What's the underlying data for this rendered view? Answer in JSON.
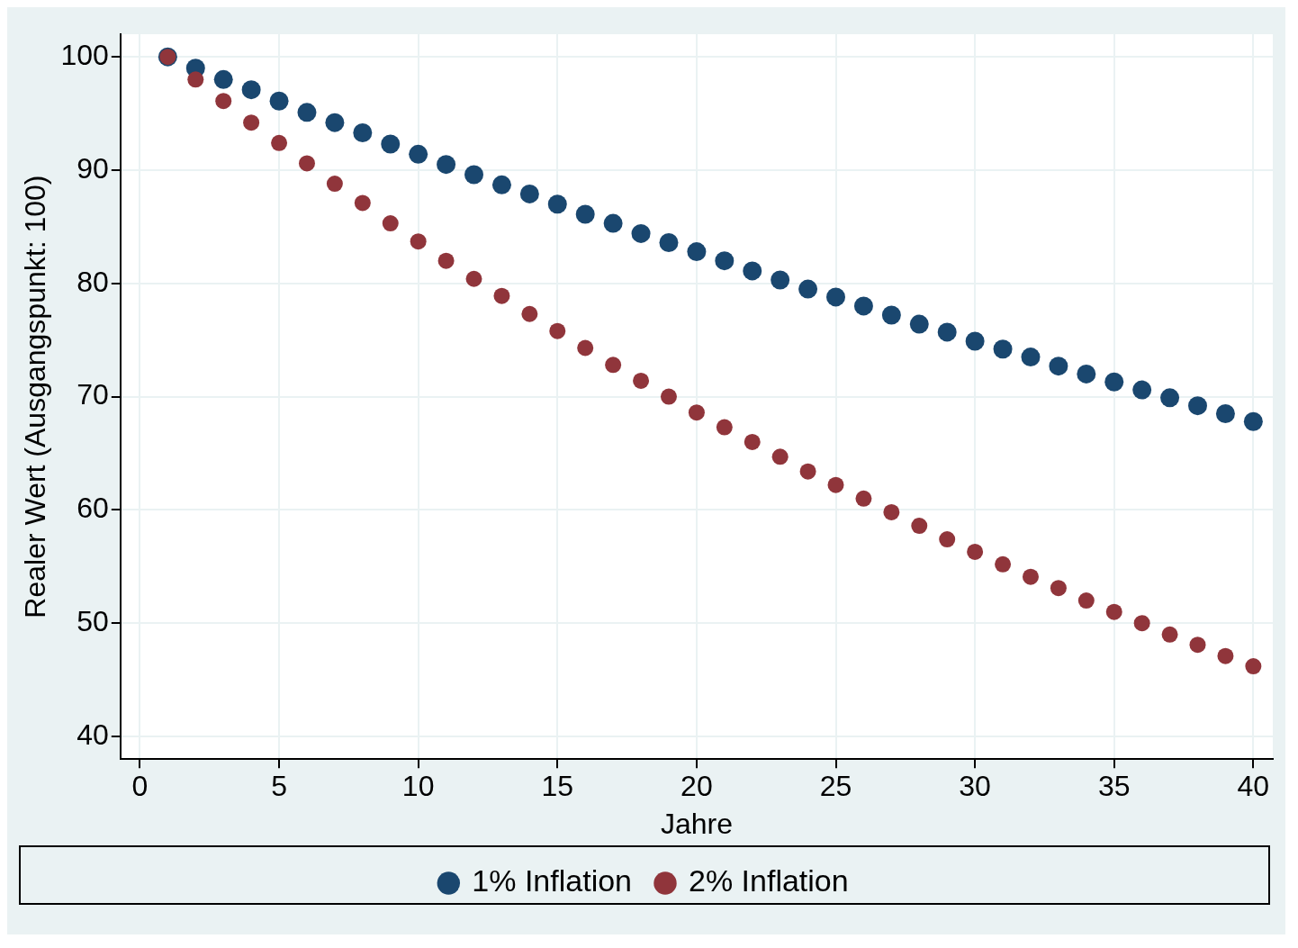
{
  "chart_data": {
    "type": "scatter",
    "xlabel": "Jahre",
    "ylabel": "Realer Wert (Ausgangspunkt: 100)",
    "x": [
      1,
      2,
      3,
      4,
      5,
      6,
      7,
      8,
      9,
      10,
      11,
      12,
      13,
      14,
      15,
      16,
      17,
      18,
      19,
      20,
      21,
      22,
      23,
      24,
      25,
      26,
      27,
      28,
      29,
      30,
      31,
      32,
      33,
      34,
      35,
      36,
      37,
      38,
      39,
      40
    ],
    "series": [
      {
        "name": "1% Inflation",
        "color": "#1a476f",
        "values": [
          100,
          99.0,
          98.0,
          97.1,
          96.1,
          95.1,
          94.2,
          93.3,
          92.3,
          91.4,
          90.5,
          89.6,
          88.7,
          87.9,
          87.0,
          86.1,
          85.3,
          84.4,
          83.6,
          82.8,
          82.0,
          81.1,
          80.3,
          79.5,
          78.8,
          78.0,
          77.2,
          76.4,
          75.7,
          74.9,
          74.2,
          73.5,
          72.7,
          72.0,
          71.3,
          70.6,
          69.9,
          69.2,
          68.5,
          67.8
        ]
      },
      {
        "name": "2% Inflation",
        "color": "#90353b",
        "values": [
          100,
          98.0,
          96.1,
          94.2,
          92.4,
          90.6,
          88.8,
          87.1,
          85.3,
          83.7,
          82.0,
          80.4,
          78.9,
          77.3,
          75.8,
          74.3,
          72.8,
          71.4,
          70.0,
          68.6,
          67.3,
          66.0,
          64.7,
          63.4,
          62.2,
          61.0,
          59.8,
          58.6,
          57.4,
          56.3,
          55.2,
          54.1,
          53.1,
          52.0,
          51.0,
          50.0,
          49.0,
          48.1,
          47.1,
          46.2
        ]
      }
    ],
    "xlim": [
      -0.7,
      40.7
    ],
    "xticks": [
      0,
      5,
      10,
      15,
      20,
      25,
      30,
      35,
      40
    ],
    "ylim": [
      38,
      102
    ],
    "yticks": [
      40,
      50,
      60,
      70,
      80,
      90,
      100
    ],
    "grid": true,
    "legend": "bottom",
    "marker": "circle"
  }
}
